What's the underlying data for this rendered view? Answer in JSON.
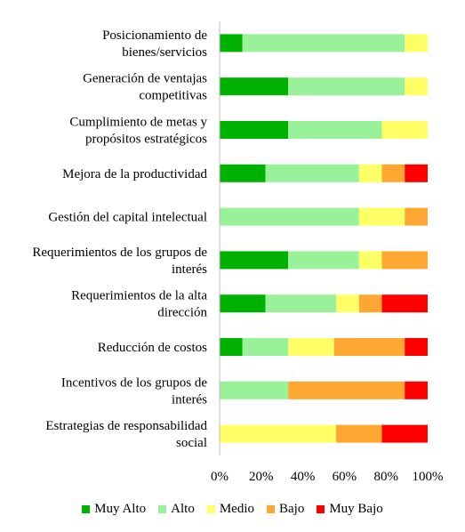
{
  "chart_data": {
    "type": "bar",
    "orientation": "horizontal",
    "stacked": "percent",
    "categories": [
      [
        "Posicionamiento de",
        "bienes/servicios"
      ],
      [
        "Generación de ventajas",
        "competitivas"
      ],
      [
        "Cumplimiento de metas y",
        "propósitos estratégicos"
      ],
      [
        "Mejora de la productividad"
      ],
      [
        "Gestión del capital intelectual"
      ],
      [
        "Requerimientos de los grupos de",
        "interés"
      ],
      [
        "Requerimientos de la alta",
        "dirección"
      ],
      [
        "Reducción de costos"
      ],
      [
        "Incentivos de los grupos de",
        "interés"
      ],
      [
        "Estrategias de responsabilidad",
        "social"
      ]
    ],
    "series": [
      {
        "name": "Muy Alto",
        "color": "#00B200",
        "values": [
          11,
          33,
          33,
          22,
          0,
          33,
          22,
          11,
          0,
          0
        ]
      },
      {
        "name": "Alto",
        "color": "#99F299",
        "values": [
          78,
          56,
          45,
          45,
          67,
          34,
          34,
          22,
          33,
          0
        ]
      },
      {
        "name": "Medio",
        "color": "#FFFF66",
        "values": [
          11,
          11,
          22,
          11,
          22,
          11,
          11,
          22,
          0,
          56
        ]
      },
      {
        "name": "Bajo",
        "color": "#FFA733",
        "values": [
          0,
          0,
          0,
          11,
          11,
          22,
          11,
          34,
          56,
          22
        ]
      },
      {
        "name": "Muy Bajo",
        "color": "#FF0000",
        "values": [
          0,
          0,
          0,
          11,
          0,
          0,
          22,
          11,
          11,
          22
        ]
      }
    ],
    "x_ticks": [
      "0%",
      "20%",
      "40%",
      "60%",
      "80%",
      "100%"
    ],
    "xlim": [
      0,
      100
    ],
    "grid": false,
    "legend_position": "bottom"
  }
}
